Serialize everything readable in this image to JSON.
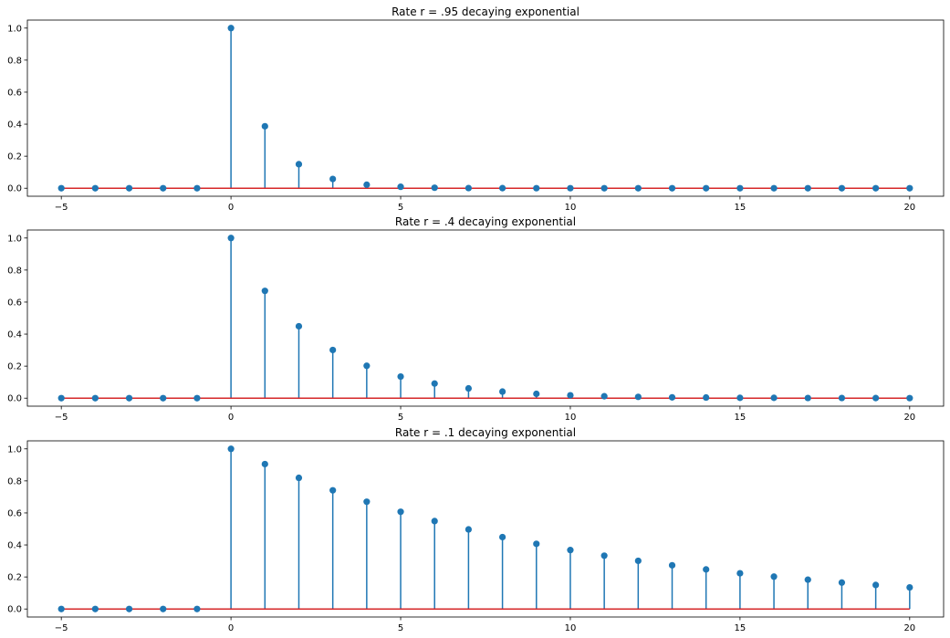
{
  "chart_data": [
    {
      "type": "stem",
      "title": "Rate r = .95 decaying exponential",
      "x": [
        -5,
        -4,
        -3,
        -2,
        -1,
        0,
        1,
        2,
        3,
        4,
        5,
        6,
        7,
        8,
        9,
        10,
        11,
        12,
        13,
        14,
        15,
        16,
        17,
        18,
        19,
        20
      ],
      "values": [
        0,
        0,
        0,
        0,
        0,
        1.0,
        0.387,
        0.15,
        0.058,
        0.022,
        0.009,
        0.003,
        0.001,
        0.0005,
        0.0002,
        0.0001,
        0,
        0,
        0,
        0,
        0,
        0,
        0,
        0,
        0,
        0
      ],
      "xlim": [
        -6,
        21
      ],
      "ylim": [
        -0.05,
        1.05
      ],
      "xticks": [
        -5,
        0,
        5,
        10,
        15,
        20
      ],
      "yticks": [
        0.0,
        0.2,
        0.4,
        0.6,
        0.8,
        1.0
      ],
      "xtick_labels": [
        "−5",
        "0",
        "5",
        "10",
        "15",
        "20"
      ],
      "ytick_labels": [
        "0.0",
        "0.2",
        "0.4",
        "0.6",
        "0.8",
        "1.0"
      ]
    },
    {
      "type": "stem",
      "title": "Rate r = .4 decaying exponential",
      "x": [
        -5,
        -4,
        -3,
        -2,
        -1,
        0,
        1,
        2,
        3,
        4,
        5,
        6,
        7,
        8,
        9,
        10,
        11,
        12,
        13,
        14,
        15,
        16,
        17,
        18,
        19,
        20
      ],
      "values": [
        0,
        0,
        0,
        0,
        0,
        1.0,
        0.67,
        0.449,
        0.301,
        0.202,
        0.135,
        0.091,
        0.061,
        0.041,
        0.027,
        0.018,
        0.012,
        0.008,
        0.005,
        0.004,
        0.002,
        0.002,
        0.001,
        0.001,
        0.0005,
        0.0003
      ],
      "xlim": [
        -6,
        21
      ],
      "ylim": [
        -0.05,
        1.05
      ],
      "xticks": [
        -5,
        0,
        5,
        10,
        15,
        20
      ],
      "yticks": [
        0.0,
        0.2,
        0.4,
        0.6,
        0.8,
        1.0
      ],
      "xtick_labels": [
        "−5",
        "0",
        "5",
        "10",
        "15",
        "20"
      ],
      "ytick_labels": [
        "0.0",
        "0.2",
        "0.4",
        "0.6",
        "0.8",
        "1.0"
      ]
    },
    {
      "type": "stem",
      "title": "Rate r = .1 decaying exponential",
      "x": [
        -5,
        -4,
        -3,
        -2,
        -1,
        0,
        1,
        2,
        3,
        4,
        5,
        6,
        7,
        8,
        9,
        10,
        11,
        12,
        13,
        14,
        15,
        16,
        17,
        18,
        19,
        20
      ],
      "values": [
        0,
        0,
        0,
        0,
        0,
        1.0,
        0.905,
        0.819,
        0.741,
        0.67,
        0.607,
        0.549,
        0.497,
        0.449,
        0.407,
        0.368,
        0.333,
        0.301,
        0.273,
        0.247,
        0.223,
        0.202,
        0.183,
        0.165,
        0.15,
        0.135
      ],
      "xlim": [
        -6,
        21
      ],
      "ylim": [
        -0.05,
        1.05
      ],
      "xticks": [
        -5,
        0,
        5,
        10,
        15,
        20
      ],
      "yticks": [
        0.0,
        0.2,
        0.4,
        0.6,
        0.8,
        1.0
      ],
      "xtick_labels": [
        "−5",
        "0",
        "5",
        "10",
        "15",
        "20"
      ],
      "ytick_labels": [
        "0.0",
        "0.2",
        "0.4",
        "0.6",
        "0.8",
        "1.0"
      ]
    }
  ],
  "colors": {
    "stem": "#1f77b4",
    "marker": "#1f77b4",
    "baseline": "#d62728",
    "axes": "#000000"
  }
}
